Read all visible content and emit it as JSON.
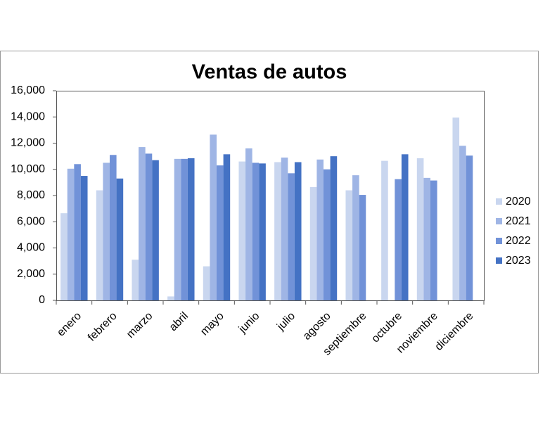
{
  "chart_data": {
    "type": "bar",
    "title": "Ventas de autos",
    "categories": [
      "enero",
      "febrero",
      "marzo",
      "abril",
      "mayo",
      "junio",
      "julio",
      "agosto",
      "septiembre",
      "octubre",
      "noviembre",
      "diciembre"
    ],
    "series": [
      {
        "name": "2020",
        "color": "#c9d6ef",
        "values": [
          6650,
          8400,
          3100,
          300,
          2600,
          10600,
          10550,
          8650,
          8400,
          10650,
          10850,
          13950
        ]
      },
      {
        "name": "2021",
        "color": "#9fb5e5",
        "values": [
          10050,
          10500,
          11700,
          10800,
          12650,
          11600,
          10900,
          10750,
          9550,
          null,
          9350,
          11800
        ]
      },
      {
        "name": "2022",
        "color": "#7192d8",
        "values": [
          10400,
          11100,
          11200,
          10800,
          10300,
          10500,
          9700,
          10000,
          8050,
          9250,
          9150,
          11050
        ]
      },
      {
        "name": "2023",
        "color": "#4472c4",
        "values": [
          9500,
          9300,
          10700,
          10850,
          11150,
          10450,
          10550,
          11000,
          null,
          11150,
          null,
          null
        ]
      }
    ],
    "ylim": [
      0,
      16000
    ],
    "yticks": [
      0,
      {
        "value": 2000,
        "label": "2,000"
      },
      {
        "value": 4000,
        "label": "4,000"
      },
      {
        "value": 6000,
        "label": "6,000"
      },
      {
        "value": 8000,
        "label": "8,000"
      },
      {
        "value": 10000,
        "label": "10,000"
      },
      {
        "value": 12000,
        "label": "12,000"
      },
      {
        "value": 14000,
        "label": "14,000"
      },
      {
        "value": 16000,
        "label": "16,000"
      }
    ],
    "legend": "right"
  }
}
